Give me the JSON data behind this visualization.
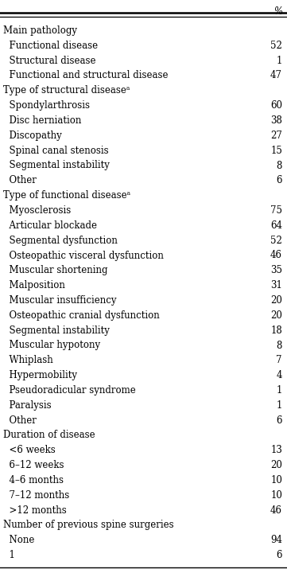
{
  "rows": [
    {
      "label": "Main pathology",
      "value": null,
      "indent": 0
    },
    {
      "label": "  Functional disease",
      "value": "52",
      "indent": 1
    },
    {
      "label": "  Structural disease",
      "value": "1",
      "indent": 1
    },
    {
      "label": "  Functional and structural disease",
      "value": "47",
      "indent": 1
    },
    {
      "label": "Type of structural diseaseᵃ",
      "value": null,
      "indent": 0
    },
    {
      "label": "  Spondylarthrosis",
      "value": "60",
      "indent": 1
    },
    {
      "label": "  Disc herniation",
      "value": "38",
      "indent": 1
    },
    {
      "label": "  Discopathy",
      "value": "27",
      "indent": 1
    },
    {
      "label": "  Spinal canal stenosis",
      "value": "15",
      "indent": 1
    },
    {
      "label": "  Segmental instability",
      "value": "8",
      "indent": 1
    },
    {
      "label": "  Other",
      "value": "6",
      "indent": 1
    },
    {
      "label": "Type of functional diseaseᵃ",
      "value": null,
      "indent": 0
    },
    {
      "label": "  Myosclerosis",
      "value": "75",
      "indent": 1
    },
    {
      "label": "  Articular blockade",
      "value": "64",
      "indent": 1
    },
    {
      "label": "  Segmental dysfunction",
      "value": "52",
      "indent": 1
    },
    {
      "label": "  Osteopathic visceral dysfunction",
      "value": "46",
      "indent": 1
    },
    {
      "label": "  Muscular shortening",
      "value": "35",
      "indent": 1
    },
    {
      "label": "  Malposition",
      "value": "31",
      "indent": 1
    },
    {
      "label": "  Muscular insufficiency",
      "value": "20",
      "indent": 1
    },
    {
      "label": "  Osteopathic cranial dysfunction",
      "value": "20",
      "indent": 1
    },
    {
      "label": "  Segmental instability",
      "value": "18",
      "indent": 1
    },
    {
      "label": "  Muscular hypotony",
      "value": "8",
      "indent": 1
    },
    {
      "label": "  Whiplash",
      "value": "7",
      "indent": 1
    },
    {
      "label": "  Hypermobility",
      "value": "4",
      "indent": 1
    },
    {
      "label": "  Pseudoradicular syndrome",
      "value": "1",
      "indent": 1
    },
    {
      "label": "  Paralysis",
      "value": "1",
      "indent": 1
    },
    {
      "label": "  Other",
      "value": "6",
      "indent": 1
    },
    {
      "label": "Duration of disease",
      "value": null,
      "indent": 0
    },
    {
      "label": "  <6 weeks",
      "value": "13",
      "indent": 1
    },
    {
      "label": "  6–12 weeks",
      "value": "20",
      "indent": 1
    },
    {
      "label": "  4–6 months",
      "value": "10",
      "indent": 1
    },
    {
      "label": "  7–12 months",
      "value": "10",
      "indent": 1
    },
    {
      "label": "  >12 months",
      "value": "46",
      "indent": 1
    },
    {
      "label": "Number of previous spine surgeries",
      "value": null,
      "indent": 0
    },
    {
      "label": "  None",
      "value": "94",
      "indent": 1
    },
    {
      "label": "  1",
      "value": "6",
      "indent": 1
    }
  ],
  "header": "%",
  "bg_color": "#ffffff",
  "text_color": "#000000",
  "font_size": 8.5,
  "line_color": "#000000",
  "fig_width": 3.61,
  "fig_height": 7.2,
  "dpi": 100
}
